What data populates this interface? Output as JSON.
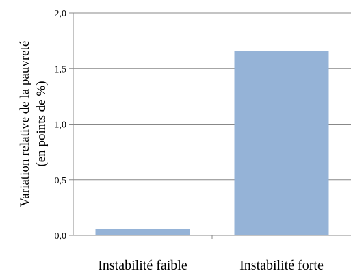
{
  "chart_data": {
    "type": "bar",
    "categories": [
      "Instabilité faible",
      "Instabilité forte"
    ],
    "values": [
      0.06,
      1.66
    ],
    "title": "",
    "xlabel": "",
    "ylabel_lines": [
      "Variation relative de la pauvreté",
      "(en points de %)"
    ],
    "ylim": [
      0,
      2
    ],
    "yticks": [
      "0,0",
      "0,5",
      "1,0",
      "1,5",
      "2,0"
    ],
    "grid": true,
    "legend": "none",
    "bar_color": "#95B3D7",
    "grid_color": "#888888",
    "axis_color": "#888888"
  }
}
